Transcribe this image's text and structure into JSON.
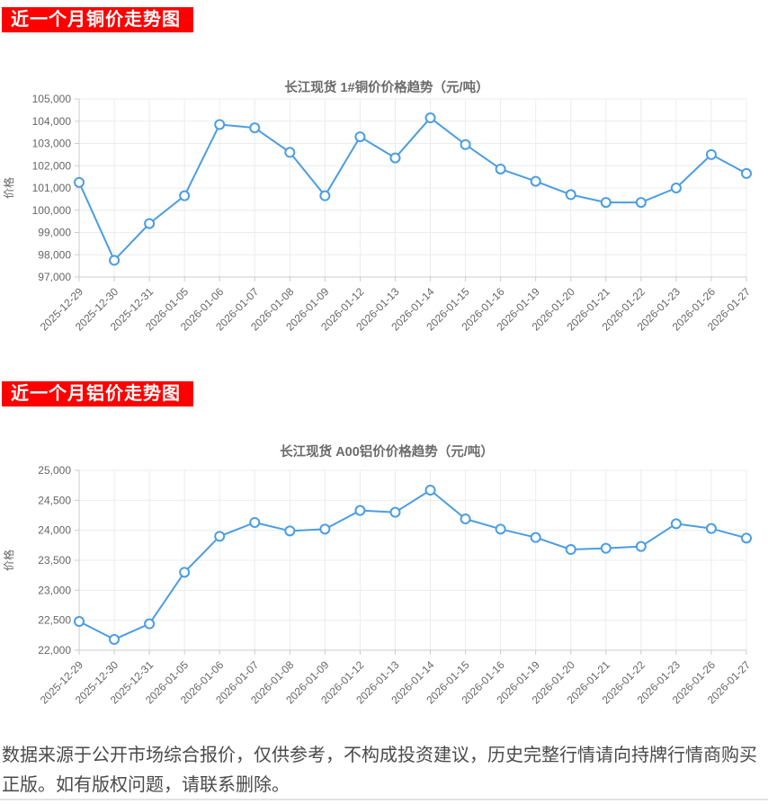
{
  "banners": [
    {
      "label": "近一个月铜价走势图"
    },
    {
      "label": "近一个月铝价走势图"
    }
  ],
  "footer": {
    "text": "数据来源于公开市场综合报价，仅供参考，不构成投资建议，历史完整行情请向持牌行情商购买正版。如有版权问题，请联系删除。"
  },
  "colors": {
    "banner_bg": "#fe0000",
    "banner_text": "#ffffff",
    "line": "#4b9de2",
    "point_fill": "#ffffff",
    "grid": "#ececec",
    "axis": "#cccccc",
    "tick_label": "#666666",
    "title": "#6b6b6b",
    "footer_text": "#4a4a4a"
  },
  "chart_data": [
    {
      "type": "line",
      "title": "长江现货 1#铜价价格趋势（元/吨）",
      "xlabel": "",
      "ylabel": "价格",
      "ylim": [
        97000,
        105000
      ],
      "ytick_step": 1000,
      "grid": true,
      "legend_position": "none",
      "categories": [
        "2025-12-29",
        "2025-12-30",
        "2025-12-31",
        "2026-01-05",
        "2026-01-06",
        "2026-01-07",
        "2026-01-08",
        "2026-01-09",
        "2026-01-12",
        "2026-01-13",
        "2026-01-14",
        "2026-01-15",
        "2026-01-16",
        "2026-01-19",
        "2026-01-20",
        "2026-01-21",
        "2026-01-22",
        "2026-01-23",
        "2026-01-26",
        "2026-01-27"
      ],
      "values": [
        101250,
        97750,
        99400,
        100650,
        103850,
        103700,
        102600,
        100650,
        103300,
        102350,
        104150,
        102950,
        101850,
        101300,
        100700,
        100350,
        100350,
        101000,
        102500,
        101650
      ]
    },
    {
      "type": "line",
      "title": "长江现货 A00铝价价格趋势（元/吨）",
      "xlabel": "",
      "ylabel": "价格",
      "ylim": [
        22000,
        25000
      ],
      "ytick_step": 500,
      "grid": true,
      "legend_position": "none",
      "categories": [
        "2025-12-29",
        "2025-12-30",
        "2025-12-31",
        "2026-01-05",
        "2026-01-06",
        "2026-01-07",
        "2026-01-08",
        "2026-01-09",
        "2026-01-12",
        "2026-01-13",
        "2026-01-14",
        "2026-01-15",
        "2026-01-16",
        "2026-01-19",
        "2026-01-20",
        "2026-01-21",
        "2026-01-22",
        "2026-01-23",
        "2026-01-26",
        "2026-01-27"
      ],
      "values": [
        22480,
        22180,
        22440,
        23300,
        23900,
        24130,
        23990,
        24020,
        24330,
        24300,
        24670,
        24190,
        24020,
        23880,
        23680,
        23700,
        23730,
        24110,
        24030,
        23870
      ]
    }
  ]
}
